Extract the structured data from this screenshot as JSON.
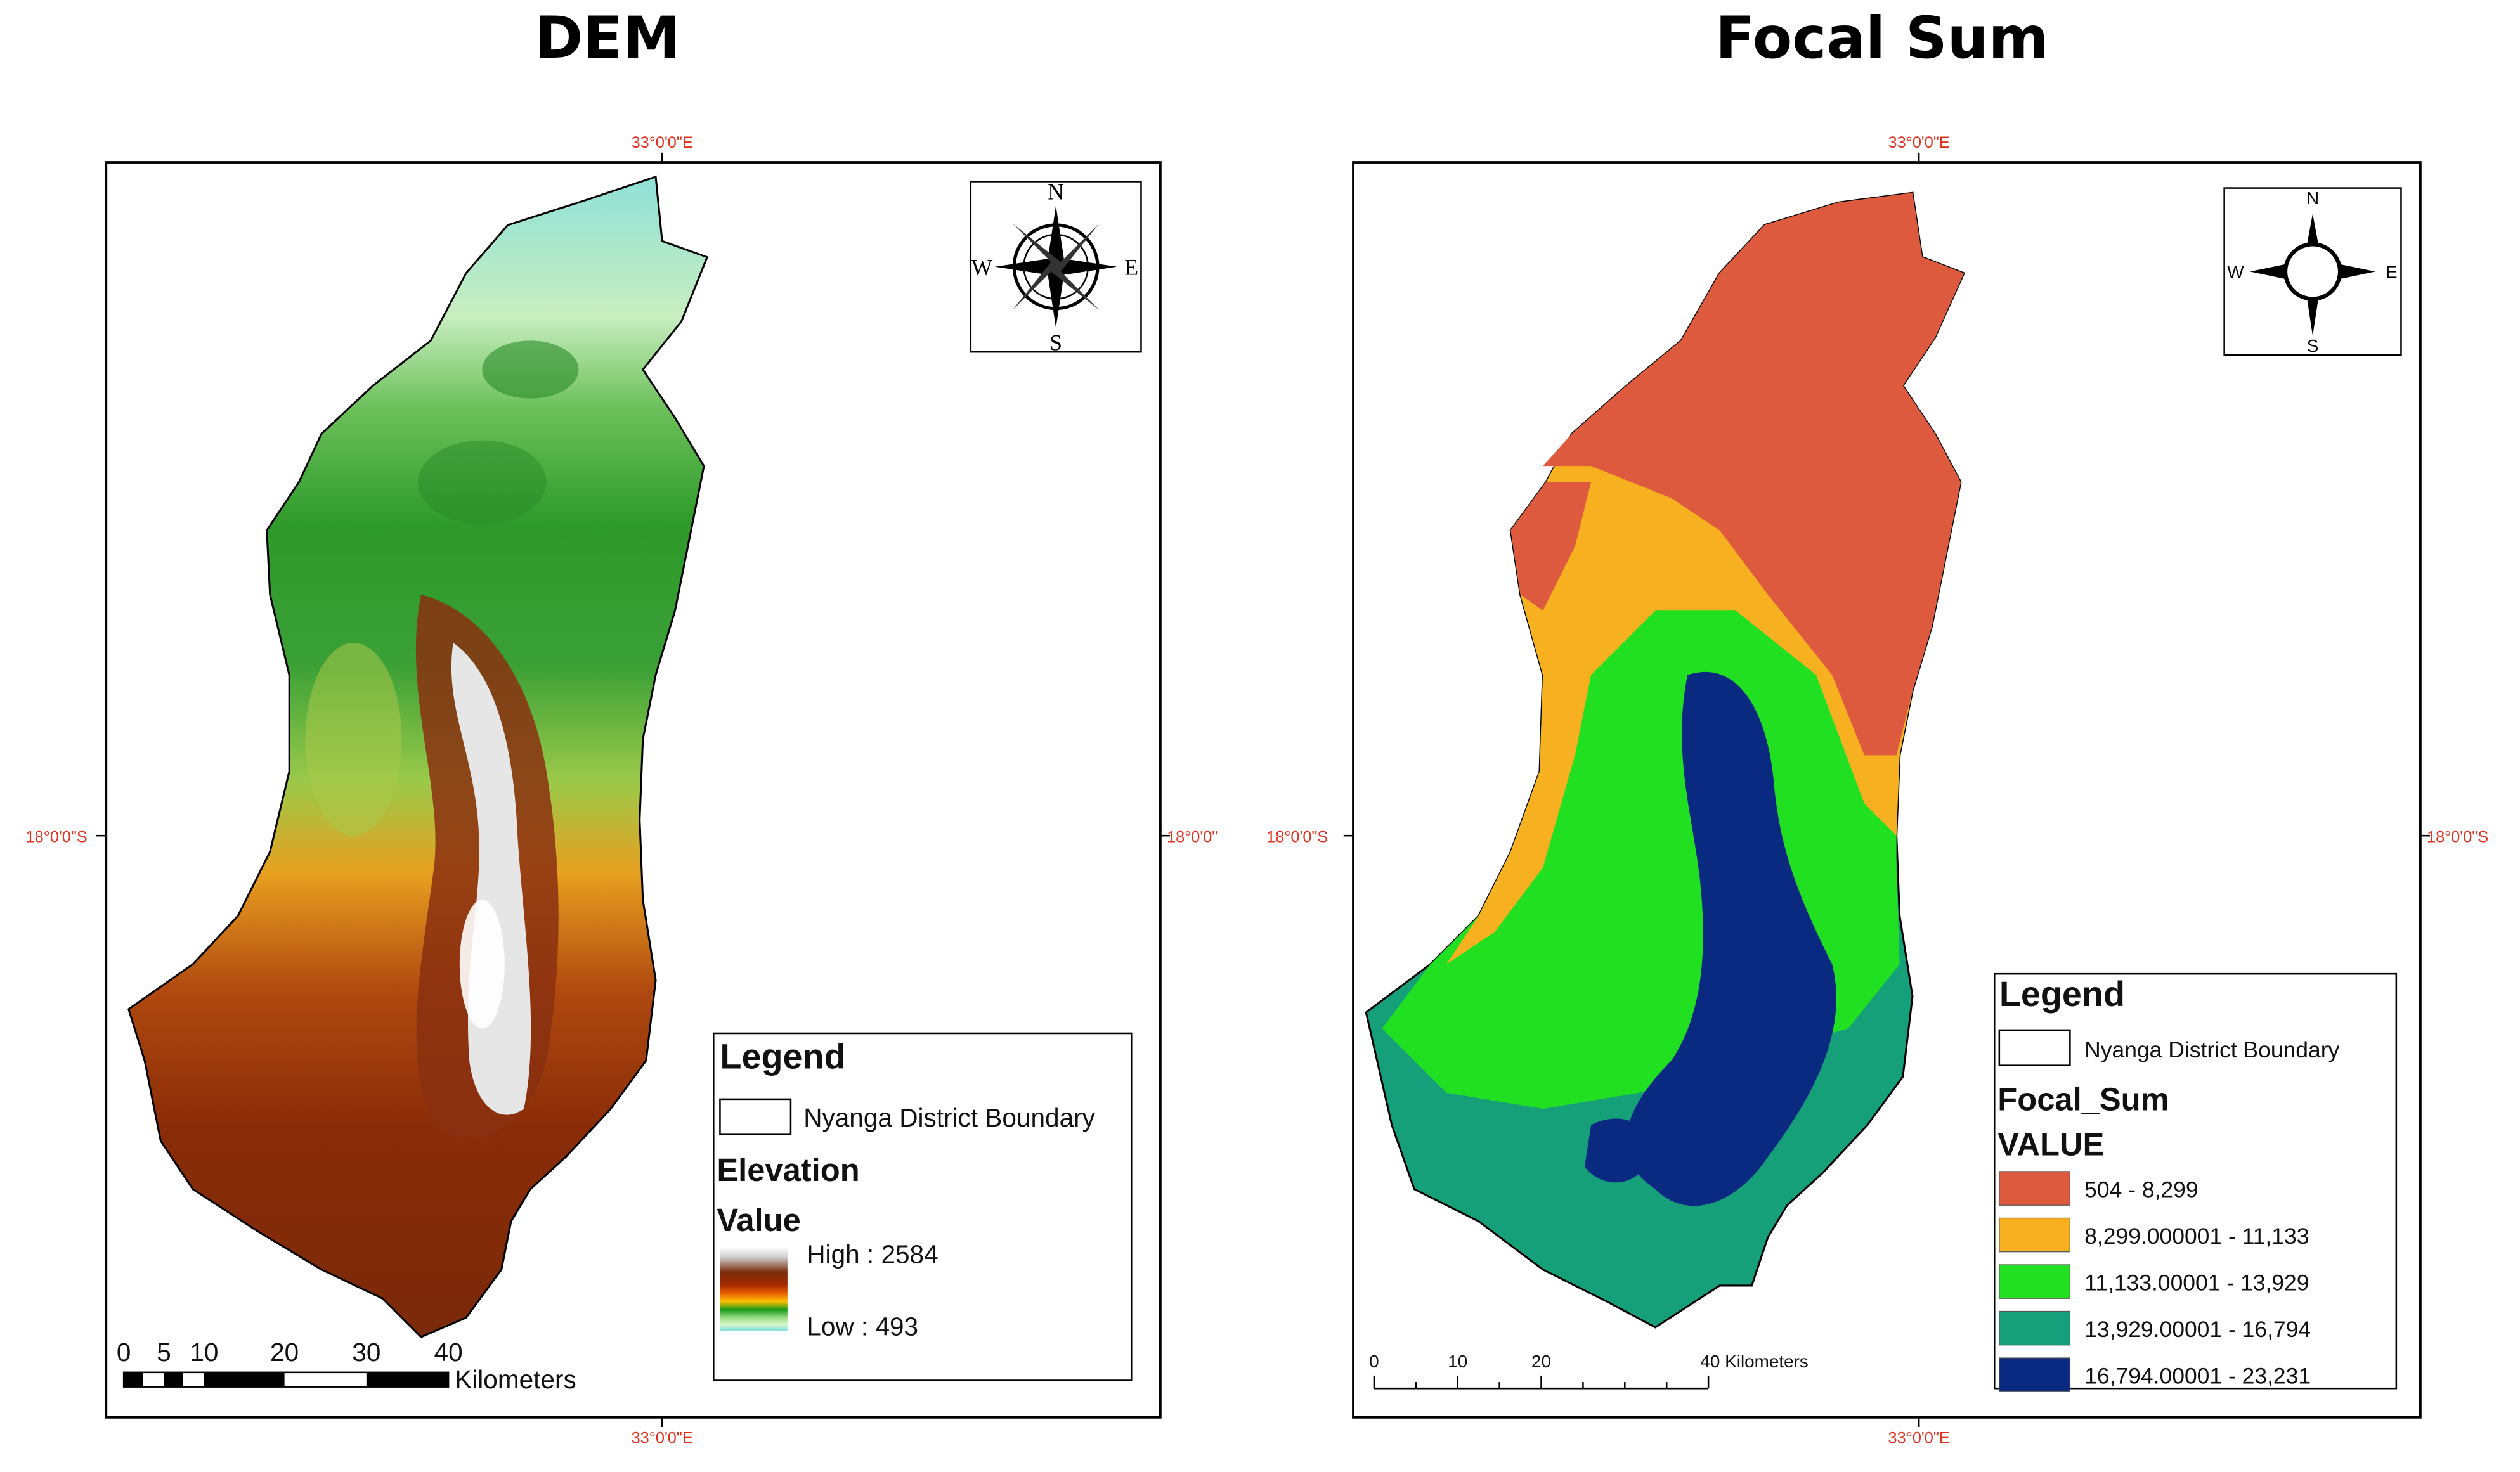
{
  "left_map": {
    "title": "DEM",
    "coords": {
      "top": "33°0'0\"E",
      "bottom": "33°0'0\"E",
      "left": "18°0'0\"S",
      "right": "18°0'0\""
    },
    "compass": {
      "n": "N",
      "s": "S",
      "e": "E",
      "w": "W"
    },
    "legend": {
      "title": "Legend",
      "boundary_label": "Nyanga District Boundary",
      "layer_title": "Elevation",
      "field_title": "Value",
      "high_label": "High : 2584",
      "low_label": "Low : 493"
    },
    "scale": {
      "ticks": [
        "0",
        "5",
        "10",
        "20",
        "30",
        "40"
      ],
      "units": "Kilometers"
    },
    "ramp_colors": [
      "#ffffff",
      "#c8c8c8",
      "#6e2a0a",
      "#9b2a00",
      "#e05a00",
      "#ffb300",
      "#1a9a1a",
      "#8fd97a",
      "#c6f2c0",
      "#7fe0e0"
    ]
  },
  "right_map": {
    "title": "Focal Sum",
    "coords": {
      "top": "33°0'0\"E",
      "bottom": "33°0'0\"E",
      "left": "18°0'0\"S",
      "right": "18°0'0\"S"
    },
    "compass": {
      "n": "N",
      "s": "S",
      "e": "E",
      "w": "W"
    },
    "legend": {
      "title": "Legend",
      "boundary_label": "Nyanga District Boundary",
      "layer_title": "Focal_Sum",
      "field_title": "VALUE",
      "classes": [
        {
          "label": "504 - 8,299",
          "color": "#dd5a3e"
        },
        {
          "label": "8,299.000001 - 11,133",
          "color": "#f7b01f"
        },
        {
          "label": "11,133.00001 - 13,929",
          "color": "#21e021"
        },
        {
          "label": "13,929.00001 - 16,794",
          "color": "#16a07a"
        },
        {
          "label": "16,794.00001 - 23,231",
          "color": "#0a2a82"
        }
      ]
    },
    "scale": {
      "ticks": [
        "0",
        "10",
        "20"
      ],
      "units": "40 Kilometers"
    }
  }
}
